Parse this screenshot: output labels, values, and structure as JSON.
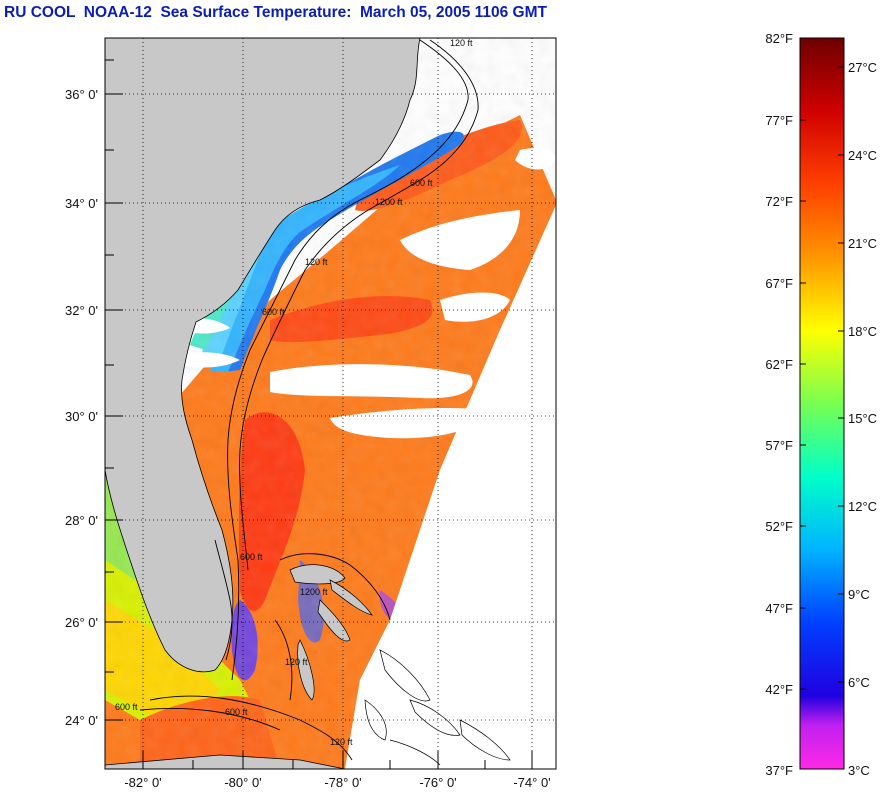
{
  "title": "RU COOL  NOAA-12  Sea Surface Temperature:  March 05, 2005 1106 GMT",
  "map": {
    "lat_ticks": [
      "36° 0'",
      "34° 0'",
      "32° 0'",
      "30° 0'",
      "28° 0'",
      "26° 0'",
      "24° 0'"
    ],
    "lon_ticks": [
      "-82° 0'",
      "-80° 0'",
      "-78° 0'",
      "-76° 0'",
      "-74° 0'"
    ],
    "contour_labels": [
      "120 ft",
      "600 ft",
      "1200 ft",
      "120 ft",
      "600 ft",
      "600 ft",
      "1200 ft",
      "120 ft",
      "600 ft",
      "600 ft",
      "120 ft"
    ],
    "colors": {
      "land": "#c8c8c8",
      "cloud": "#ffffff",
      "frame": "#000000"
    }
  },
  "colorbar": {
    "fahrenheit_labels": [
      "82°F",
      "77°F",
      "72°F",
      "67°F",
      "62°F",
      "57°F",
      "52°F",
      "47°F",
      "42°F",
      "37°F"
    ],
    "celsius_labels": [
      "27°C",
      "24°C",
      "21°C",
      "18°C",
      "15°C",
      "12°C",
      "9°C",
      "6°C",
      "3°C"
    ],
    "colors": [
      "#ff28e6",
      "#a020f0",
      "#0000ff",
      "#0050ff",
      "#00c8ff",
      "#00ffb4",
      "#78ff00",
      "#ffff00",
      "#ff9600",
      "#ff3200",
      "#c80000",
      "#780000"
    ]
  }
}
